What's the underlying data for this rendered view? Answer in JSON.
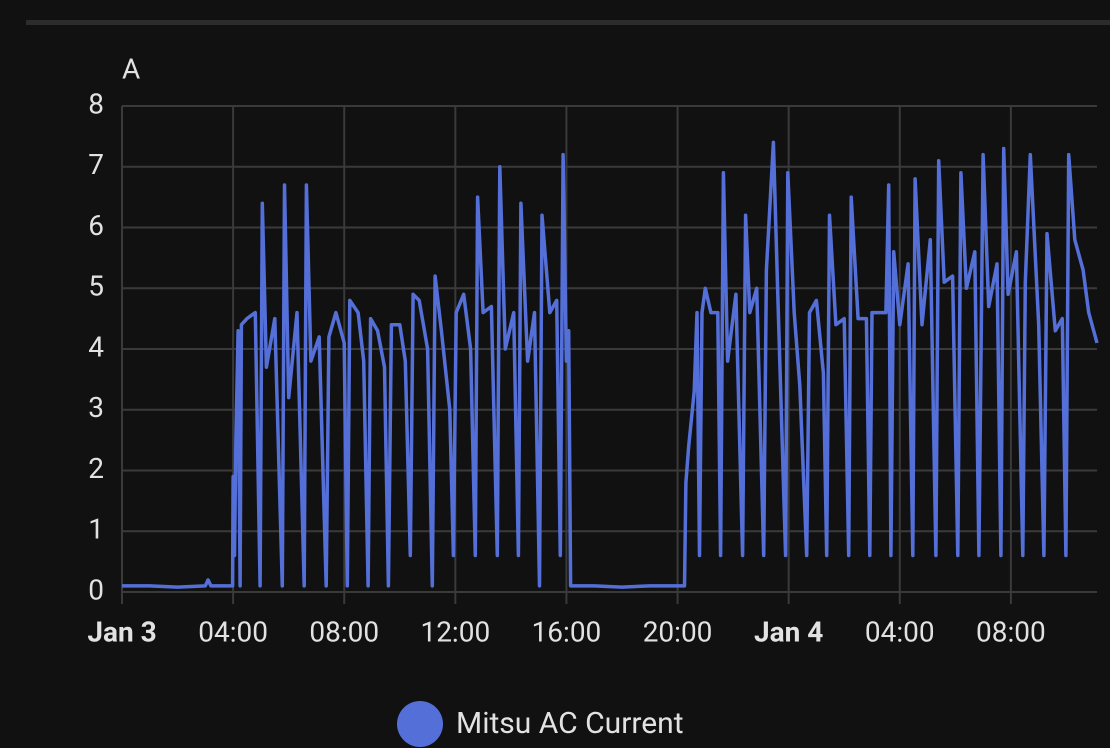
{
  "chart_data": {
    "type": "line",
    "y_unit_label": "A",
    "xlim": [
      0,
      35.1
    ],
    "ylim": [
      0,
      8
    ],
    "xticks": [
      {
        "value": 0,
        "label": "Jan 3"
      },
      {
        "value": 4,
        "label": "04:00"
      },
      {
        "value": 8,
        "label": "08:00"
      },
      {
        "value": 12,
        "label": "12:00"
      },
      {
        "value": 16,
        "label": "16:00"
      },
      {
        "value": 20,
        "label": "20:00"
      },
      {
        "value": 24,
        "label": "Jan 4"
      },
      {
        "value": 28,
        "label": "04:00"
      },
      {
        "value": 32,
        "label": "08:00"
      }
    ],
    "yticks": [
      0,
      1,
      2,
      3,
      4,
      5,
      6,
      7,
      8
    ],
    "grid": true,
    "x": [
      0,
      1,
      2,
      3,
      3.1,
      3.2,
      3.98,
      4.0,
      4.05,
      4.1,
      4.18,
      4.25,
      4.3,
      4.5,
      4.8,
      4.97,
      5.05,
      5.2,
      5.5,
      5.77,
      5.85,
      6.0,
      6.3,
      6.56,
      6.64,
      6.8,
      7.1,
      7.35,
      7.45,
      7.7,
      8.0,
      8.11,
      8.2,
      8.5,
      8.7,
      8.86,
      8.95,
      9.2,
      9.45,
      9.59,
      9.7,
      10.0,
      10.2,
      10.38,
      10.48,
      10.7,
      11.0,
      11.17,
      11.27,
      11.5,
      11.8,
      11.93,
      12.03,
      12.3,
      12.55,
      12.72,
      12.8,
      13.0,
      13.3,
      13.51,
      13.6,
      13.8,
      14.1,
      14.27,
      14.36,
      14.6,
      14.85,
      15.03,
      15.12,
      15.4,
      15.65,
      15.78,
      15.88,
      16.0,
      16.08,
      16.15,
      17,
      18,
      19,
      20.25,
      20.3,
      20.4,
      20.6,
      20.7,
      20.79,
      20.88,
      21.0,
      21.2,
      21.45,
      21.55,
      21.65,
      21.8,
      22.1,
      22.34,
      22.45,
      22.6,
      22.85,
      23.1,
      23.2,
      23.45,
      23.6,
      23.89,
      23.97,
      24.2,
      24.4,
      24.65,
      24.75,
      25.0,
      25.25,
      25.37,
      25.47,
      25.7,
      26.0,
      26.16,
      26.25,
      26.5,
      26.8,
      26.92,
      27.0,
      27.5,
      27.6,
      27.68,
      27.78,
      28.0,
      28.3,
      28.47,
      28.55,
      28.8,
      29.1,
      29.3,
      29.4,
      29.6,
      29.9,
      30.09,
      30.2,
      30.4,
      30.7,
      30.85,
      31.0,
      31.2,
      31.5,
      31.64,
      31.74,
      31.9,
      32.2,
      32.43,
      32.52,
      32.7,
      33.0,
      33.19,
      33.3,
      33.6,
      33.85,
      33.98,
      34.08,
      34.3,
      34.6,
      34.8,
      35.1
    ],
    "series": [
      {
        "name": "Mitsu AC Current",
        "color": "#5470d8",
        "values": [
          0.1,
          0.1,
          0.08,
          0.1,
          0.2,
          0.1,
          0.1,
          1.9,
          0.6,
          2.5,
          4.3,
          0.1,
          4.4,
          4.5,
          4.6,
          0.1,
          6.4,
          3.7,
          4.5,
          0.1,
          6.7,
          3.2,
          4.6,
          0.1,
          6.7,
          3.8,
          4.2,
          0.1,
          4.2,
          4.6,
          4.1,
          0.1,
          4.8,
          4.6,
          3.8,
          0.1,
          4.5,
          4.3,
          3.7,
          0.1,
          4.4,
          4.4,
          3.8,
          0.6,
          4.9,
          4.8,
          4.0,
          0.1,
          5.2,
          4.3,
          3.0,
          0.6,
          4.6,
          4.9,
          4.0,
          0.6,
          6.5,
          4.6,
          4.7,
          0.6,
          7.0,
          4.0,
          4.6,
          0.6,
          6.4,
          3.8,
          4.6,
          0.1,
          6.2,
          4.6,
          4.8,
          0.6,
          7.2,
          3.8,
          4.3,
          0.1,
          0.1,
          0.08,
          0.1,
          0.1,
          1.8,
          2.4,
          3.3,
          4.6,
          0.6,
          4.6,
          5.0,
          4.6,
          4.6,
          0.6,
          6.9,
          3.8,
          4.9,
          0.6,
          6.2,
          4.6,
          5.0,
          0.6,
          5.3,
          7.4,
          5.0,
          0.6,
          6.9,
          4.6,
          3.4,
          0.6,
          4.6,
          4.8,
          3.6,
          0.6,
          6.2,
          4.4,
          4.5,
          0.6,
          6.5,
          4.5,
          4.5,
          0.6,
          4.6,
          4.6,
          6.7,
          0.6,
          5.6,
          4.4,
          5.4,
          0.6,
          6.8,
          4.4,
          5.8,
          0.6,
          7.1,
          5.1,
          5.2,
          0.6,
          6.9,
          5.0,
          5.6,
          0.6,
          7.2,
          4.7,
          5.4,
          0.6,
          7.3,
          4.9,
          5.6,
          0.6,
          5.1,
          7.2,
          4.4,
          0.6,
          5.9,
          4.3,
          4.5,
          0.6,
          7.2,
          5.8,
          5.3,
          4.6,
          4.1
        ]
      }
    ]
  }
}
